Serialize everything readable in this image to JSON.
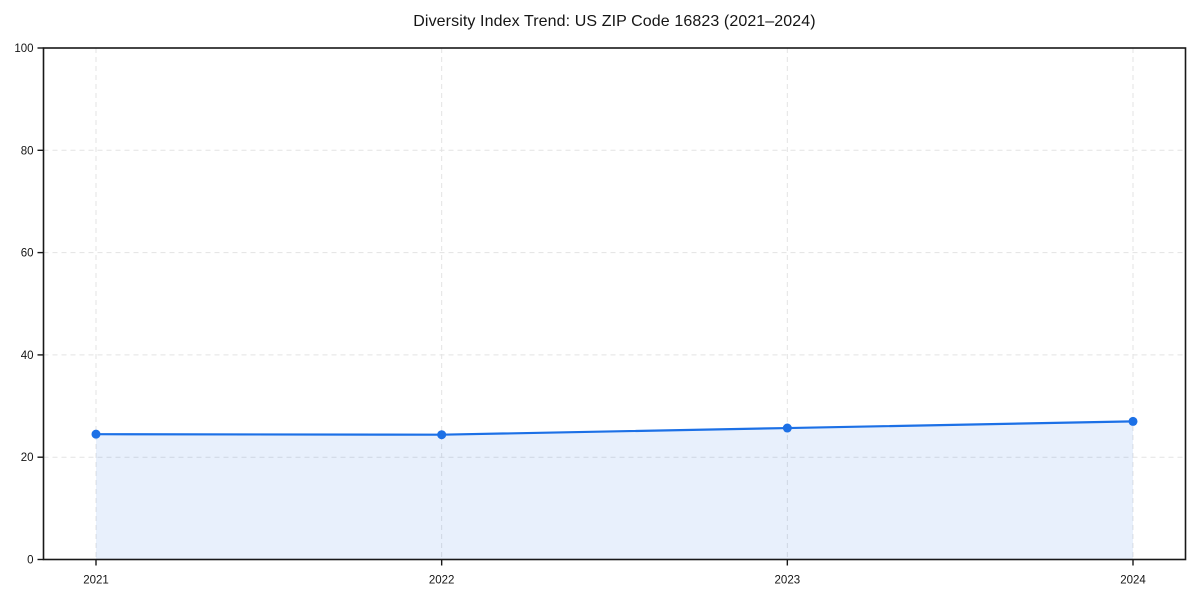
{
  "page": {
    "background": "#ffffff"
  },
  "chart_data": {
    "type": "area",
    "title": "Diversity Index Trend: US ZIP Code 16823 (2021–2024)",
    "x": [
      "2021",
      "2022",
      "2023",
      "2024"
    ],
    "series": [
      {
        "name": "Diversity Index",
        "values": [
          24.5,
          24.4,
          25.7,
          27.0
        ]
      }
    ],
    "xlabel": "",
    "ylabel": "",
    "ylim": [
      0,
      100
    ],
    "yticks": [
      0,
      20,
      40,
      60,
      80,
      100
    ],
    "grid": "dashed",
    "legend": "none",
    "marker": "circle",
    "colors": {
      "line": "#1c70e6",
      "marker": "#1c70e6",
      "fill": "rgba(28, 112, 230, 0.10)",
      "grid": "#e3e3e3",
      "spine": "#181818",
      "tick_text": "#151515",
      "background": "#ffffff"
    }
  }
}
